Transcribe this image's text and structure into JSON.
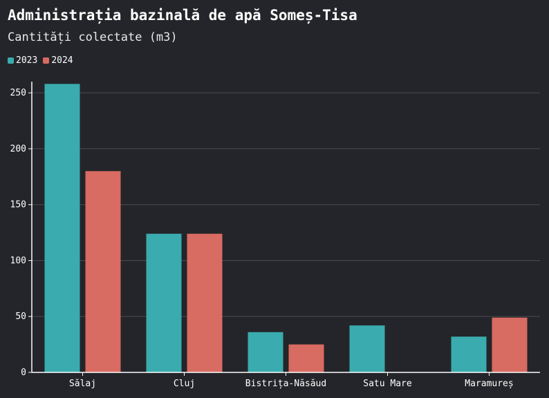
{
  "header": {
    "title": "Administrația bazinală de apă Someș-Tisa",
    "subtitle": "Cantități colectate (m3)"
  },
  "colors": {
    "background": "#24252a",
    "series_2023": "#3aabae",
    "series_2024": "#d86b62",
    "grid": "#4a4b50",
    "axis": "#ffffff"
  },
  "chart_data": {
    "type": "bar",
    "title": "Administrația bazinală de apă Someș-Tisa",
    "subtitle": "Cantități colectate (m3)",
    "xlabel": "",
    "ylabel": "",
    "categories": [
      "Sălaj",
      "Cluj",
      "Bistrița-Năsăud",
      "Satu Mare",
      "Maramureș"
    ],
    "series": [
      {
        "name": "2023",
        "values": [
          258,
          124,
          36,
          42,
          32
        ]
      },
      {
        "name": "2024",
        "values": [
          180,
          124,
          25,
          0,
          49
        ]
      }
    ],
    "ylim": [
      0,
      260
    ],
    "yticks": [
      0,
      50,
      100,
      150,
      200,
      250
    ],
    "grid": true,
    "legend_position": "top-left"
  }
}
